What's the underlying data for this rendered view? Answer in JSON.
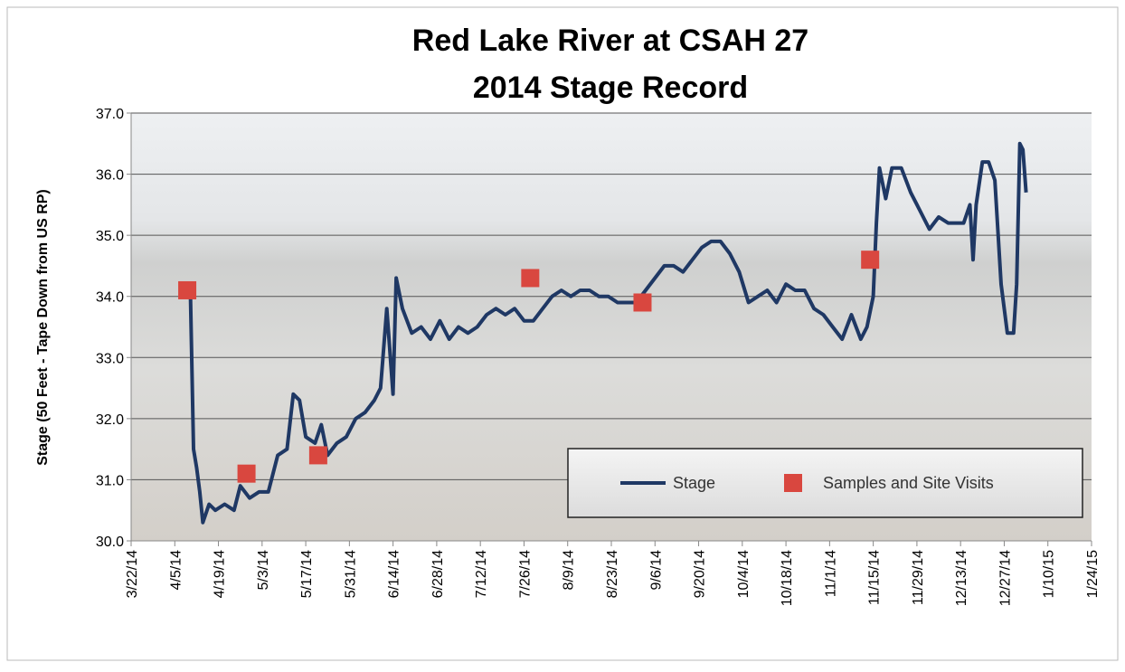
{
  "chart_data": {
    "type": "line",
    "title": "Red Lake River at CSAH 27",
    "subtitle": "2014 Stage Record",
    "y_label": "Stage (50 Feet - Tape Down from US RP)",
    "xlim": [
      "2014-03-22",
      "2015-01-24"
    ],
    "xticks": [
      {
        "value": "2014-03-22",
        "label": "3/22/14"
      },
      {
        "value": "2014-04-05",
        "label": "4/5/14"
      },
      {
        "value": "2014-04-19",
        "label": "4/19/14"
      },
      {
        "value": "2014-05-03",
        "label": "5/3/14"
      },
      {
        "value": "2014-05-17",
        "label": "5/17/14"
      },
      {
        "value": "2014-05-31",
        "label": "5/31/14"
      },
      {
        "value": "2014-06-14",
        "label": "6/14/14"
      },
      {
        "value": "2014-06-28",
        "label": "6/28/14"
      },
      {
        "value": "2014-07-12",
        "label": "7/12/14"
      },
      {
        "value": "2014-07-26",
        "label": "7/26/14"
      },
      {
        "value": "2014-08-09",
        "label": "8/9/14"
      },
      {
        "value": "2014-08-23",
        "label": "8/23/14"
      },
      {
        "value": "2014-09-06",
        "label": "9/6/14"
      },
      {
        "value": "2014-09-20",
        "label": "9/20/14"
      },
      {
        "value": "2014-10-04",
        "label": "10/4/14"
      },
      {
        "value": "2014-10-18",
        "label": "10/18/14"
      },
      {
        "value": "2014-11-01",
        "label": "11/1/14"
      },
      {
        "value": "2014-11-15",
        "label": "11/15/14"
      },
      {
        "value": "2014-11-29",
        "label": "11/29/14"
      },
      {
        "value": "2014-12-13",
        "label": "12/13/14"
      },
      {
        "value": "2014-12-27",
        "label": "12/27/14"
      },
      {
        "value": "2015-01-10",
        "label": "1/10/15"
      },
      {
        "value": "2015-01-24",
        "label": "1/24/15"
      }
    ],
    "ylim": [
      30,
      37
    ],
    "yticks": [
      {
        "value": 30,
        "label": "30.0"
      },
      {
        "value": 31,
        "label": "31.0"
      },
      {
        "value": 32,
        "label": "32.0"
      },
      {
        "value": 33,
        "label": "33.0"
      },
      {
        "value": 34,
        "label": "34.0"
      },
      {
        "value": 35,
        "label": "35.0"
      },
      {
        "value": 36,
        "label": "36.0"
      },
      {
        "value": 37,
        "label": "37.0"
      }
    ],
    "grid": true,
    "legend": "lower right",
    "series": [
      {
        "name": "Stage",
        "type": "line",
        "color": "#1f3864",
        "x": [
          "2014-04-10",
          "2014-04-11",
          "2014-04-12",
          "2014-04-13",
          "2014-04-14",
          "2014-04-16",
          "2014-04-18",
          "2014-04-21",
          "2014-04-24",
          "2014-04-26",
          "2014-04-29",
          "2014-05-02",
          "2014-05-05",
          "2014-05-08",
          "2014-05-11",
          "2014-05-13",
          "2014-05-15",
          "2014-05-17",
          "2014-05-20",
          "2014-05-22",
          "2014-05-24",
          "2014-05-27",
          "2014-05-30",
          "2014-06-02",
          "2014-06-05",
          "2014-06-08",
          "2014-06-10",
          "2014-06-12",
          "2014-06-14",
          "2014-06-15",
          "2014-06-17",
          "2014-06-20",
          "2014-06-23",
          "2014-06-26",
          "2014-06-29",
          "2014-07-02",
          "2014-07-05",
          "2014-07-08",
          "2014-07-11",
          "2014-07-14",
          "2014-07-17",
          "2014-07-20",
          "2014-07-23",
          "2014-07-26",
          "2014-07-29",
          "2014-08-01",
          "2014-08-04",
          "2014-08-07",
          "2014-08-10",
          "2014-08-13",
          "2014-08-16",
          "2014-08-19",
          "2014-08-22",
          "2014-08-25",
          "2014-08-28",
          "2014-08-31",
          "2014-09-03",
          "2014-09-06",
          "2014-09-09",
          "2014-09-12",
          "2014-09-15",
          "2014-09-18",
          "2014-09-21",
          "2014-09-24",
          "2014-09-27",
          "2014-09-30",
          "2014-10-03",
          "2014-10-06",
          "2014-10-09",
          "2014-10-12",
          "2014-10-15",
          "2014-10-18",
          "2014-10-21",
          "2014-10-24",
          "2014-10-27",
          "2014-10-30",
          "2014-11-02",
          "2014-11-05",
          "2014-11-08",
          "2014-11-11",
          "2014-11-13",
          "2014-11-15",
          "2014-11-16",
          "2014-11-17",
          "2014-11-19",
          "2014-11-21",
          "2014-11-24",
          "2014-11-27",
          "2014-11-30",
          "2014-12-03",
          "2014-12-06",
          "2014-12-09",
          "2014-12-12",
          "2014-12-14",
          "2014-12-16",
          "2014-12-17",
          "2014-12-18",
          "2014-12-20",
          "2014-12-22",
          "2014-12-24",
          "2014-12-26",
          "2014-12-28",
          "2014-12-30",
          "2014-12-31",
          "2015-01-01",
          "2015-01-02",
          "2015-01-03"
        ],
        "values": [
          34.1,
          31.5,
          31.2,
          30.8,
          30.3,
          30.6,
          30.5,
          30.6,
          30.5,
          30.9,
          30.7,
          30.8,
          30.8,
          31.4,
          31.5,
          32.4,
          32.3,
          31.7,
          31.6,
          31.9,
          31.4,
          31.6,
          31.7,
          32.0,
          32.1,
          32.3,
          32.5,
          33.8,
          32.4,
          34.3,
          33.8,
          33.4,
          33.5,
          33.3,
          33.6,
          33.3,
          33.5,
          33.4,
          33.5,
          33.7,
          33.8,
          33.7,
          33.8,
          33.6,
          33.6,
          33.8,
          34.0,
          34.1,
          34.0,
          34.1,
          34.1,
          34.0,
          34.0,
          33.9,
          33.9,
          33.9,
          34.1,
          34.3,
          34.5,
          34.5,
          34.4,
          34.6,
          34.8,
          34.9,
          34.9,
          34.7,
          34.4,
          33.9,
          34.0,
          34.1,
          33.9,
          34.2,
          34.1,
          34.1,
          33.8,
          33.7,
          33.5,
          33.3,
          33.7,
          33.3,
          33.5,
          34.0,
          35.2,
          36.1,
          35.6,
          36.1,
          36.1,
          35.7,
          35.4,
          35.1,
          35.3,
          35.2,
          35.2,
          35.2,
          35.5,
          34.6,
          35.5,
          36.2,
          36.2,
          35.9,
          34.2,
          33.4,
          33.4,
          34.2,
          36.5,
          36.4,
          35.7
        ]
      },
      {
        "name": "Samples and Site Visits",
        "type": "scatter",
        "color": "#d9473f",
        "x": [
          "2014-04-09",
          "2014-04-28",
          "2014-05-21",
          "2014-07-28",
          "2014-09-02",
          "2014-11-14"
        ],
        "values": [
          34.1,
          31.1,
          31.4,
          34.3,
          33.9,
          34.6
        ]
      }
    ]
  }
}
